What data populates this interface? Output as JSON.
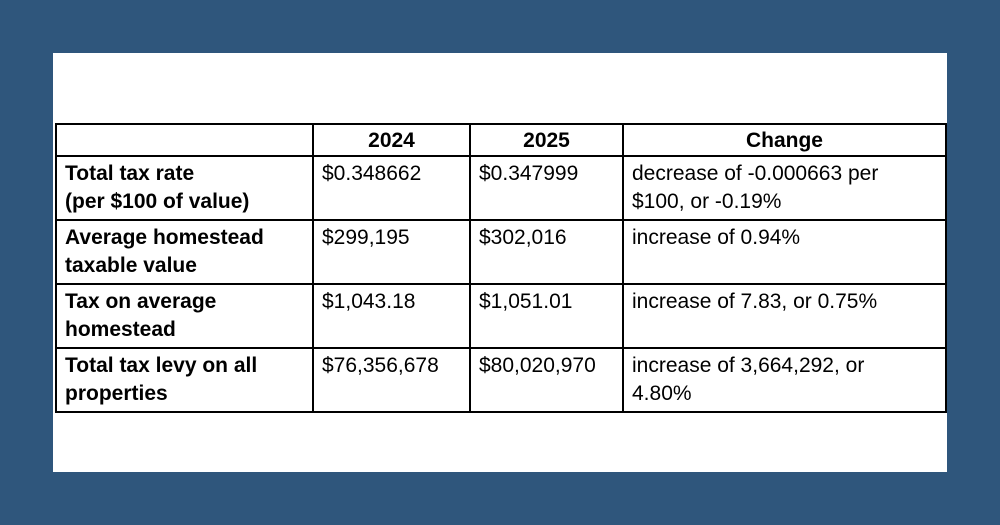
{
  "table": {
    "headers": [
      "",
      "2024",
      "2025",
      "Change"
    ],
    "rows": [
      {
        "label_lines": [
          "Total tax rate",
          "(per $100 of value)"
        ],
        "y2024": "$0.348662",
        "y2025": "$0.347999",
        "change_lines": [
          "decrease of -0.000663 per",
          "$100, or -0.19%"
        ]
      },
      {
        "label_lines": [
          "Average homestead",
          "taxable value"
        ],
        "y2024": "$299,195",
        "y2025": "$302,016",
        "change_lines": [
          "increase of 0.94%"
        ]
      },
      {
        "label_lines": [
          "Tax on average",
          "homestead"
        ],
        "y2024": "$1,043.18",
        "y2025": "$1,051.01",
        "change_lines": [
          "increase of 7.83, or 0.75%"
        ]
      },
      {
        "label_lines": [
          "Total tax levy on all",
          "properties"
        ],
        "y2024": "$76,356,678",
        "y2025": "$80,020,970",
        "change_lines": [
          "increase of 3,664,292, or",
          "4.80%"
        ]
      }
    ]
  }
}
